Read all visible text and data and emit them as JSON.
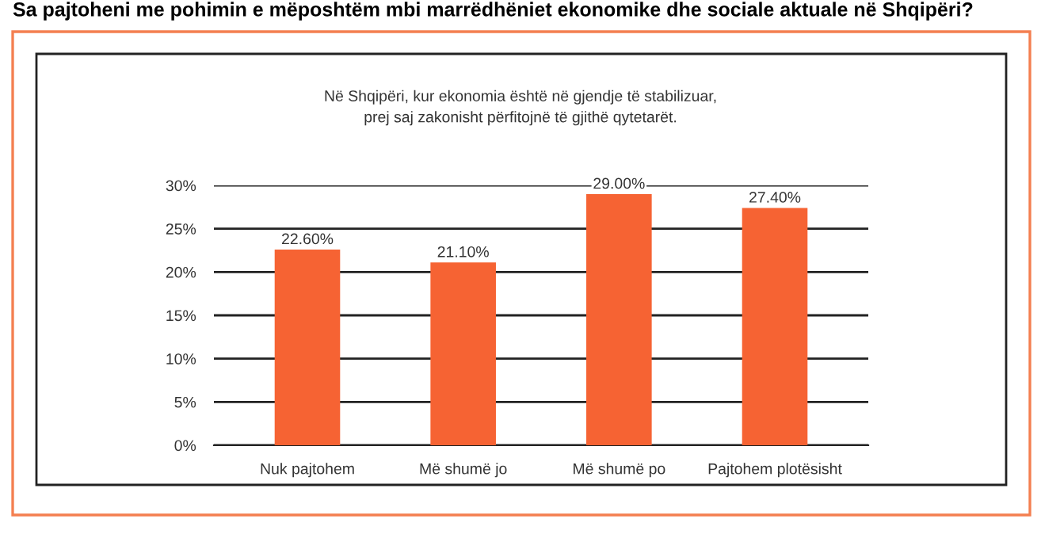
{
  "chart_data": {
    "type": "bar",
    "title": "Sa pajtoheni me pohimin e mëposhtëm mbi marrëdhëniet ekonomike dhe sociale aktuale në Shqipëri?",
    "subtitle": "Në Shqipëri, kur ekonomia është në gjendje të stabilizuar,\nprej saj zakonisht përfitojnë të gjithë qytetarët.",
    "categories": [
      "Nuk pajtohem",
      "Më shumë jo",
      "Më shumë po",
      "Pajtohem plotësisht"
    ],
    "values": [
      22.6,
      21.1,
      29.0,
      27.4
    ],
    "value_labels": [
      "22.60%",
      "21.10%",
      "29.00%",
      "27.40%"
    ],
    "color": "#f66333",
    "ylim": [
      0,
      30
    ],
    "yticks": [
      {
        "value": 0,
        "label": "0%"
      },
      {
        "value": 5,
        "label": "5%"
      },
      {
        "value": 10,
        "label": "10%"
      },
      {
        "value": 15,
        "label": "15%"
      },
      {
        "value": 20,
        "label": "20%"
      },
      {
        "value": 25,
        "label": "25%"
      },
      {
        "value": 30,
        "label": "30%"
      }
    ],
    "grid": "y",
    "legend": false
  }
}
